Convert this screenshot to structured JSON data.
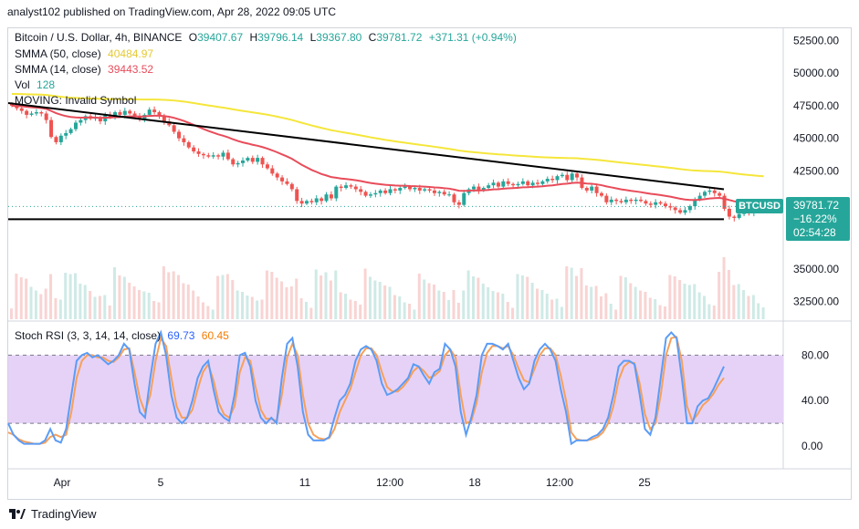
{
  "header": {
    "publisher": "analyst102 published on TradingView.com, Apr 28, 2022 09:05 UTC"
  },
  "legend": {
    "symbol": "Bitcoin / U.S. Dollar, 4h, BINANCE",
    "open_label": "O",
    "open": "39407.67",
    "high_label": "H",
    "high": "39796.14",
    "low_label": "L",
    "low": "39367.80",
    "close_label": "C",
    "close": "39781.72",
    "change": "+371.31 (+0.94%)",
    "smma50_label": "SMMA (50, close)",
    "smma50_value": "40484.97",
    "smma14_label": "SMMA (14, close)",
    "smma14_value": "39443.52",
    "vol_label": "Vol",
    "vol_value": "128",
    "moving_label": "MOVING: Invalid Symbol",
    "stoch_label": "Stoch RSI (3, 3, 14, 14, close)",
    "stoch_k": "69.73",
    "stoch_d": "60.45"
  },
  "price_tag": {
    "symbol": "BTCUSD",
    "price": "39781.72",
    "change": "−16.22%",
    "countdown": "02:54:28"
  },
  "colors": {
    "up": "#26a69a",
    "down": "#ef5350",
    "smma50": "#f5e63b",
    "smma14": "#e84c5a",
    "stoch_k": "#5b9cf6",
    "stoch_d": "#f7a05a",
    "band": "#e6d2f7"
  },
  "chart_data": [
    {
      "type": "candlestick",
      "title": "Bitcoin / U.S. Dollar, 4h, BINANCE",
      "y_ticks": [
        "52500.00",
        "50000.00",
        "47500.00",
        "45000.00",
        "42500.00",
        "35000.00",
        "32500.00"
      ],
      "x_ticks": [
        "Apr",
        "5",
        "11",
        "12:00",
        "18",
        "12:00",
        "25"
      ],
      "ylim": [
        31000,
        53500
      ],
      "close_series": [
        47500,
        47300,
        47100,
        46800,
        46900,
        47000,
        46900,
        46400,
        45100,
        44700,
        45200,
        45400,
        45700,
        46200,
        46400,
        46700,
        46500,
        46600,
        46300,
        46800,
        46600,
        47000,
        46800,
        47100,
        46900,
        46700,
        46500,
        46800,
        47200,
        47000,
        46700,
        46300,
        46000,
        45500,
        45000,
        44700,
        44300,
        44000,
        43800,
        43700,
        43600,
        43700,
        43600,
        43900,
        43400,
        43000,
        43100,
        43300,
        43500,
        43200,
        43500,
        43000,
        42700,
        42300,
        42000,
        41700,
        41500,
        41100,
        40200,
        40000,
        40200,
        40100,
        40400,
        40200,
        40700,
        40400,
        41300,
        41200,
        41400,
        41300,
        41100,
        40900,
        40600,
        40700,
        40800,
        41000,
        40800,
        41100,
        41000,
        41200,
        41300,
        41100,
        41200,
        41000,
        41100,
        41000,
        40800,
        40900,
        40700,
        40700,
        40100,
        39900,
        40800,
        41100,
        41300,
        41000,
        41200,
        41400,
        41600,
        41300,
        41700,
        41500,
        41400,
        41500,
        41700,
        41400,
        41600,
        41500,
        41700,
        41900,
        41800,
        42100,
        42200,
        41800,
        42300,
        42000,
        41200,
        41000,
        41300,
        40800,
        40600,
        40100,
        40300,
        40200,
        40100,
        40300,
        40200,
        40300,
        40200,
        40000,
        39900,
        40100,
        40000,
        39800,
        39700,
        39500,
        39300,
        39500,
        39800,
        40300,
        40600,
        40900,
        41000,
        40800,
        40600,
        39600,
        39000,
        38900,
        39200,
        39400,
        39300,
        39600,
        39700,
        39782
      ]
    },
    {
      "type": "line",
      "title": "Stoch RSI (3, 3, 14, 14, close)",
      "y_ticks": [
        "80.00",
        "40.00",
        "0.00"
      ],
      "ylim": [
        -20,
        110
      ],
      "band": [
        20,
        80
      ],
      "series": [
        {
          "name": "K",
          "values": [
            20,
            10,
            5,
            2,
            2,
            2,
            2,
            5,
            15,
            5,
            3,
            15,
            45,
            75,
            80,
            82,
            78,
            80,
            76,
            72,
            75,
            80,
            90,
            85,
            55,
            30,
            25,
            60,
            90,
            100,
            80,
            45,
            25,
            20,
            25,
            40,
            60,
            70,
            75,
            50,
            30,
            25,
            22,
            45,
            80,
            82,
            70,
            40,
            25,
            20,
            25,
            20,
            60,
            90,
            95,
            70,
            30,
            10,
            5,
            5,
            5,
            8,
            25,
            40,
            45,
            55,
            75,
            85,
            88,
            85,
            75,
            55,
            45,
            47,
            50,
            55,
            60,
            72,
            70,
            62,
            55,
            65,
            68,
            90,
            85,
            70,
            30,
            10,
            25,
            45,
            80,
            90,
            90,
            88,
            85,
            90,
            75,
            60,
            50,
            55,
            75,
            85,
            90,
            85,
            75,
            50,
            30,
            2,
            5,
            5,
            5,
            8,
            10,
            15,
            25,
            45,
            70,
            75,
            75,
            72,
            45,
            15,
            10,
            25,
            60,
            95,
            100,
            95,
            60,
            20,
            20,
            35,
            40,
            42,
            50,
            60,
            70
          ]
        },
        {
          "name": "D",
          "values": [
            12,
            10,
            6,
            4,
            3,
            2,
            2,
            3,
            8,
            10,
            8,
            10,
            30,
            60,
            75,
            80,
            80,
            78,
            78,
            75,
            74,
            78,
            85,
            86,
            65,
            42,
            30,
            45,
            75,
            95,
            88,
            60,
            35,
            25,
            25,
            32,
            50,
            65,
            72,
            58,
            38,
            28,
            25,
            35,
            65,
            78,
            75,
            52,
            32,
            24,
            24,
            22,
            45,
            78,
            90,
            80,
            45,
            20,
            10,
            7,
            6,
            7,
            15,
            30,
            40,
            50,
            65,
            80,
            86,
            86,
            80,
            65,
            52,
            48,
            48,
            52,
            58,
            66,
            70,
            66,
            60,
            62,
            66,
            80,
            85,
            78,
            45,
            20,
            22,
            38,
            65,
            82,
            88,
            88,
            86,
            88,
            80,
            68,
            58,
            56,
            68,
            80,
            86,
            86,
            80,
            62,
            40,
            12,
            6,
            5,
            5,
            6,
            8,
            12,
            20,
            35,
            58,
            70,
            74,
            73,
            55,
            28,
            15,
            20,
            45,
            80,
            95,
            96,
            75,
            35,
            22,
            28,
            36,
            40,
            46,
            54,
            60
          ]
        }
      ]
    }
  ],
  "footer": {
    "brand": "TradingView"
  }
}
